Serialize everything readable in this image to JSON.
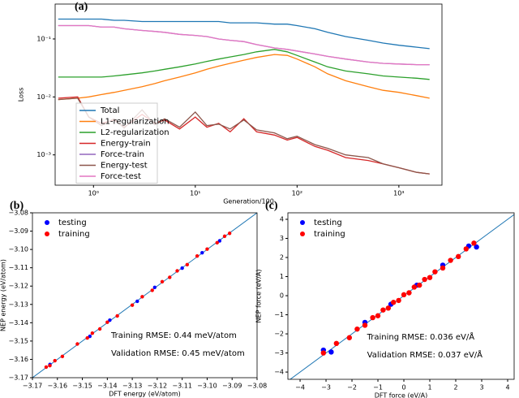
{
  "chart_data": [
    {
      "type": "line",
      "title": "(a)",
      "x_label": "Generation/100",
      "y_label": "Loss",
      "xscale": "log",
      "yscale": "log",
      "legend": "upper left",
      "xlim": [
        0.42,
        2650
      ],
      "ylim": [
        0.0003,
        0.4
      ],
      "xticks": [
        {
          "value": 1,
          "label": "10⁰"
        },
        {
          "value": 10,
          "label": "10¹"
        },
        {
          "value": 100,
          "label": "10²"
        },
        {
          "value": 1000,
          "label": "10³"
        }
      ],
      "yticks": [
        {
          "value": 0.001,
          "label": "10⁻³"
        },
        {
          "value": 0.01,
          "label": "10⁻²"
        },
        {
          "value": 0.1,
          "label": "10⁻¹"
        }
      ],
      "x": [
        0.45,
        0.7,
        0.9,
        1.2,
        1.6,
        2,
        3,
        4,
        5,
        7,
        10,
        13,
        17,
        22,
        30,
        40,
        60,
        80,
        100,
        150,
        200,
        300,
        500,
        700,
        1000,
        1500,
        2000
      ],
      "series": [
        {
          "name": "Total",
          "color": "#1f77b4",
          "values": [
            0.22,
            0.22,
            0.22,
            0.22,
            0.21,
            0.21,
            0.2,
            0.2,
            0.2,
            0.2,
            0.2,
            0.2,
            0.2,
            0.19,
            0.19,
            0.19,
            0.18,
            0.18,
            0.17,
            0.15,
            0.13,
            0.11,
            0.095,
            0.085,
            0.078,
            0.072,
            0.068
          ]
        },
        {
          "name": "L1-regularization",
          "color": "#ff7f0e",
          "values": [
            0.009,
            0.0095,
            0.01,
            0.011,
            0.012,
            0.013,
            0.015,
            0.017,
            0.019,
            0.022,
            0.026,
            0.03,
            0.034,
            0.038,
            0.043,
            0.048,
            0.054,
            0.052,
            0.045,
            0.033,
            0.025,
            0.019,
            0.015,
            0.013,
            0.012,
            0.0105,
            0.0095
          ]
        },
        {
          "name": "L2-regularization",
          "color": "#2ca02c",
          "values": [
            0.022,
            0.022,
            0.022,
            0.022,
            0.023,
            0.024,
            0.026,
            0.028,
            0.03,
            0.033,
            0.037,
            0.041,
            0.045,
            0.049,
            0.054,
            0.06,
            0.066,
            0.06,
            0.052,
            0.04,
            0.033,
            0.028,
            0.025,
            0.023,
            0.022,
            0.021,
            0.02
          ]
        },
        {
          "name": "Energy-train",
          "color": "#d62728",
          "values": [
            0.0095,
            0.01,
            0.0045,
            0.0035,
            0.004,
            0.003,
            0.005,
            0.0035,
            0.004,
            0.0028,
            0.0045,
            0.003,
            0.0035,
            0.0025,
            0.0042,
            0.0025,
            0.0022,
            0.0018,
            0.002,
            0.0014,
            0.0012,
            0.0009,
            0.0008,
            0.0007,
            0.0006,
            0.0005,
            0.00047
          ]
        },
        {
          "name": "Force-train",
          "color": "#9467bd",
          "values": [
            0.17,
            0.17,
            0.17,
            0.16,
            0.16,
            0.15,
            0.14,
            0.135,
            0.13,
            0.12,
            0.115,
            0.11,
            0.1,
            0.095,
            0.09,
            0.08,
            0.07,
            0.066,
            0.062,
            0.055,
            0.05,
            0.045,
            0.04,
            0.038,
            0.037,
            0.036,
            0.036
          ]
        },
        {
          "name": "Energy-test",
          "color": "#8c564b",
          "values": [
            0.009,
            0.0095,
            0.0045,
            0.0032,
            0.0042,
            0.0029,
            0.006,
            0.0033,
            0.0042,
            0.003,
            0.0055,
            0.0032,
            0.0034,
            0.0028,
            0.004,
            0.0027,
            0.0024,
            0.0019,
            0.0021,
            0.0015,
            0.0013,
            0.001,
            0.0009,
            0.0007,
            0.0006,
            0.0005,
            0.00047
          ]
        },
        {
          "name": "Force-test",
          "color": "#e377c2",
          "values": [
            0.17,
            0.17,
            0.17,
            0.16,
            0.16,
            0.15,
            0.14,
            0.135,
            0.13,
            0.12,
            0.115,
            0.11,
            0.1,
            0.095,
            0.09,
            0.08,
            0.07,
            0.066,
            0.062,
            0.055,
            0.05,
            0.045,
            0.04,
            0.038,
            0.037,
            0.036,
            0.036
          ]
        }
      ]
    },
    {
      "type": "scatter",
      "title": "(b)",
      "x_label": "DFT energy (eV/atom)",
      "y_label": "NEP energy (eV/atom)",
      "legend": "upper left",
      "xlim": [
        -3.17,
        -3.08
      ],
      "ylim": [
        -3.17,
        -3.08
      ],
      "xticks": [
        {
          "value": -3.17,
          "label": "−3.17"
        },
        {
          "value": -3.16,
          "label": "−3.16"
        },
        {
          "value": -3.15,
          "label": "−3.15"
        },
        {
          "value": -3.14,
          "label": "−3.14"
        },
        {
          "value": -3.13,
          "label": "−3.13"
        },
        {
          "value": -3.12,
          "label": "−3.12"
        },
        {
          "value": -3.11,
          "label": "−3.11"
        },
        {
          "value": -3.1,
          "label": "−3.10"
        },
        {
          "value": -3.09,
          "label": "−3.09"
        },
        {
          "value": -3.08,
          "label": "−3.08"
        }
      ],
      "yticks": [
        {
          "value": -3.17,
          "label": "−3.17"
        },
        {
          "value": -3.16,
          "label": "−3.16"
        },
        {
          "value": -3.15,
          "label": "−3.15"
        },
        {
          "value": -3.14,
          "label": "−3.14"
        },
        {
          "value": -3.13,
          "label": "−3.13"
        },
        {
          "value": -3.12,
          "label": "−3.12"
        },
        {
          "value": -3.11,
          "label": "−3.11"
        },
        {
          "value": -3.1,
          "label": "−3.10"
        },
        {
          "value": -3.09,
          "label": "−3.09"
        },
        {
          "value": -3.08,
          "label": "−3.08"
        }
      ],
      "diagonal_color": "#1f77b4",
      "series": [
        {
          "name": "testing",
          "color": "#0000ff",
          "x": [
            -3.163,
            -3.147,
            -3.139,
            -3.128,
            -3.121,
            -3.11,
            -3.102,
            -3.095
          ],
          "values": [
            -3.1628,
            -3.1474,
            -3.1386,
            -3.1283,
            -3.1207,
            -3.1102,
            -3.1018,
            -3.0953
          ]
        },
        {
          "name": "training",
          "color": "#ff0000",
          "x": [
            -3.1645,
            -3.163,
            -3.161,
            -3.158,
            -3.152,
            -3.148,
            -3.146,
            -3.143,
            -3.14,
            -3.136,
            -3.13,
            -3.126,
            -3.122,
            -3.118,
            -3.115,
            -3.112,
            -3.108,
            -3.104,
            -3.1,
            -3.096,
            -3.093,
            -3.091
          ],
          "values": [
            -3.1642,
            -3.1634,
            -3.1607,
            -3.1584,
            -3.1516,
            -3.1483,
            -3.1457,
            -3.1434,
            -3.1397,
            -3.1363,
            -3.1304,
            -3.1258,
            -3.1223,
            -3.1176,
            -3.1152,
            -3.1117,
            -3.1083,
            -3.1036,
            -3.0998,
            -3.0963,
            -3.0928,
            -3.0912
          ]
        }
      ],
      "annotations": [
        {
          "text": "Training RMSE: 0.44 meV/atom",
          "color": "#0000ff"
        },
        {
          "text": "Validation RMSE: 0.45 meV/atom",
          "color": "#ff0000"
        }
      ]
    },
    {
      "type": "scatter",
      "title": "(c)",
      "x_label": "DFT force (eV/A)",
      "y_label": "NEP force (eV/A)",
      "legend": "upper left",
      "xlim": [
        -4.47,
        4.25
      ],
      "ylim": [
        -4.38,
        4.34
      ],
      "xticks": [
        {
          "value": -4,
          "label": "−4"
        },
        {
          "value": -3,
          "label": "−3"
        },
        {
          "value": -2,
          "label": "−2"
        },
        {
          "value": -1,
          "label": "−1"
        },
        0,
        1,
        2,
        3,
        4
      ],
      "yticks": [
        {
          "value": -4,
          "label": "−4"
        },
        {
          "value": -3,
          "label": "−3"
        },
        {
          "value": -2,
          "label": "−2"
        },
        {
          "value": -1,
          "label": "−1"
        },
        0,
        1,
        2,
        3,
        4
      ],
      "diagonal_color": "#1f77b4",
      "series": [
        {
          "name": "testing",
          "color": "#0000ff",
          "x": [
            -3.1,
            -2.8,
            -1.5,
            -0.5,
            0.5,
            1.5,
            2.5,
            2.8
          ],
          "values": [
            -2.85,
            -2.95,
            -1.4,
            -0.45,
            0.55,
            1.6,
            2.6,
            2.55
          ]
        },
        {
          "name": "training",
          "color": "#ff0000",
          "x": [
            -3.1,
            -2.6,
            -2.1,
            -1.8,
            -1.5,
            -1.2,
            -1,
            -0.8,
            -0.6,
            -0.4,
            -0.2,
            0,
            0.2,
            0.4,
            0.6,
            0.8,
            1,
            1.2,
            1.5,
            1.8,
            2.1,
            2.4,
            2.7
          ],
          "values": [
            -3.0,
            -2.5,
            -2.2,
            -1.75,
            -1.55,
            -1.15,
            -1.05,
            -0.75,
            -0.65,
            -0.35,
            -0.25,
            0.05,
            0.15,
            0.45,
            0.55,
            0.85,
            0.95,
            1.25,
            1.45,
            1.85,
            2.05,
            2.45,
            2.75
          ]
        }
      ],
      "annotations": [
        {
          "text": "Training RMSE: 0.036 eV/Å",
          "color": "#0000ff"
        },
        {
          "text": "Validation RMSE: 0.037 eV/Å",
          "color": "#ff0000"
        }
      ]
    }
  ]
}
